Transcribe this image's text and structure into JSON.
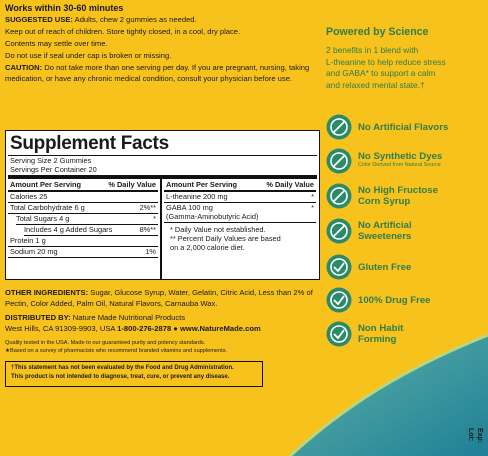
{
  "left": {
    "headline": "Works within 30-60 minutes",
    "use_label": "SUGGESTED USE:",
    "use_text": "Adults, chew 2 gummies as needed.",
    "storage": "Keep out of reach of children. Store tightly closed, in a cool, dry place.",
    "settle": "Contents may settle over time.",
    "seal": "Do not use if seal under cap is broken or missing.",
    "caution_label": "CAUTION:",
    "caution_text_1": "Do not take more than one serving per day. If you are pregnant, nursing, taking",
    "caution_text_2": "medication, or have any chronic medical condition, consult your physician before use."
  },
  "facts": {
    "title": "Supplement Facts",
    "serving_size": "Serving Size 2 Gummies",
    "servings": "Servings Per Container 20",
    "header_amount": "Amount Per Serving",
    "header_dv": "% Daily Value",
    "left_rows": [
      {
        "name": "Calories 25"
      },
      {
        "name": "Total Carbohydrate 6 g",
        "dv": "2%**"
      },
      {
        "name": "Total Sugars 4 g",
        "dv": "*"
      },
      {
        "name": "Includes 4 g Added Sugars",
        "dv": "8%**"
      },
      {
        "name": "Protein 1 g"
      },
      {
        "name": "Sodium 20 mg",
        "dv": "1%"
      }
    ],
    "right_rows": [
      {
        "name": "L-theanine 200 mg",
        "dv": "*"
      },
      {
        "name": "GABA 100 mg",
        "sub": "(Gamma-Aminobutyric Acid)",
        "dv": "*"
      }
    ],
    "note_1": "* Daily Value not established.",
    "note_2a": "** Percent Daily Values are based",
    "note_2b": "on a 2,000 calorie diet."
  },
  "ingredients": {
    "label": "OTHER INGREDIENTS:",
    "text_1": "Sugar, Glucose Syrup, Water, Gelatin, Citric Acid, Less than 2% of",
    "text_2": "Pectin, Color Added, Palm Oil, Natural Flavors, Carnauba Wax."
  },
  "distributor": {
    "label": "DISTRIBUTED BY:",
    "name": "Nature Made Nutritional Products",
    "address": "West Hills, CA 91309-9903, USA",
    "phone": "1-800-276-2878 ● www.NatureMade.com"
  },
  "quality": {
    "line_1": "Quality tested in the USA. Made to our guaranteed purity and potency standards.",
    "line_2": "★Based on a survey of pharmacists who recommend branded vitamins and supplements."
  },
  "disclaimer": {
    "line_1": "†This statement has not been evaluated by the Food and Drug Administration.",
    "line_2": "This product is not intended to diagnose, treat, cure, or prevent any disease."
  },
  "right": {
    "title": "Powered by Science",
    "body": [
      "2 benefits in 1 blend with",
      "L-theanine to help reduce stress",
      "and GABA* to support a calm",
      "and relaxed mental state.†"
    ],
    "features": [
      {
        "name": "No Artificial Flavors"
      },
      {
        "name": "No Synthetic Dyes",
        "sub": "Color Derived from Natural Source"
      },
      {
        "name": "No High Fructose",
        "name_2": "Corn Syrup"
      },
      {
        "name": "No Artificial",
        "name_2": "Sweeteners"
      },
      {
        "name": "Gluten Free"
      },
      {
        "name": "100% Drug Free"
      },
      {
        "name": "Non Habit",
        "name_2": "Forming"
      }
    ]
  },
  "lot": {
    "lot": "Lot:",
    "exp": "Exp:"
  }
}
